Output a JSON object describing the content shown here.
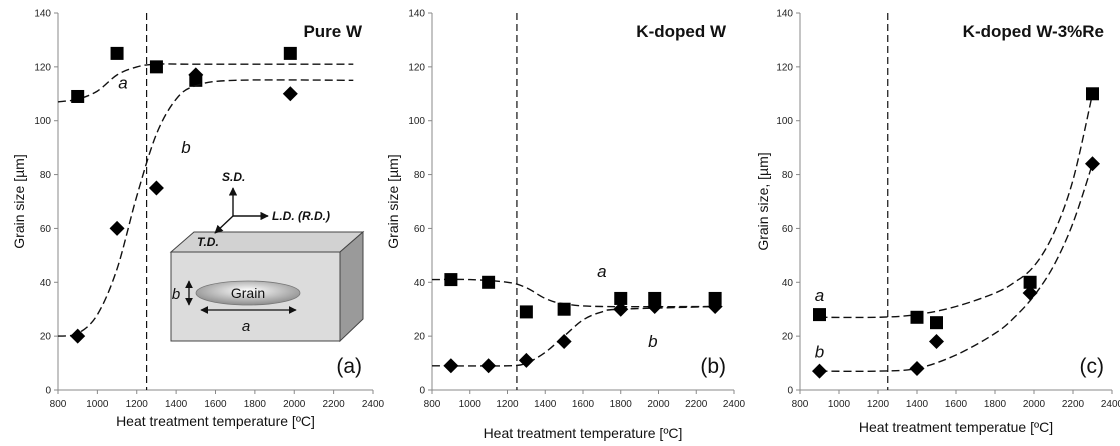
{
  "chart_data": [
    {
      "type": "scatter",
      "title": "Pure W",
      "panel_label": "(a)",
      "xlabel": "Heat treatment temperature [ºC]",
      "ylabel": "Grain size [µm]",
      "xlim": [
        800,
        2400
      ],
      "ylim": [
        0,
        140
      ],
      "x_ticks": [
        "800",
        "1000",
        "1200",
        "1400",
        "1600",
        "1800",
        "2000",
        "2200",
        "2400"
      ],
      "y_ticks": [
        "0",
        "20",
        "40",
        "60",
        "80",
        "100",
        "120",
        "140"
      ],
      "vline_x": 1250,
      "grid": false,
      "legend": "none",
      "series": [
        {
          "marker": "square",
          "curve_label": "a",
          "points": [
            [
              900,
              109
            ],
            [
              1100,
              125
            ],
            [
              1300,
              120
            ],
            [
              1500,
              115
            ],
            [
              1980,
              125
            ]
          ],
          "trend": [
            [
              800,
              107
            ],
            [
              900,
              108
            ],
            [
              1000,
              111
            ],
            [
              1100,
              117
            ],
            [
              1200,
              120
            ],
            [
              1300,
              121
            ],
            [
              1500,
              121
            ],
            [
              2000,
              121
            ],
            [
              2300,
              121
            ]
          ]
        },
        {
          "marker": "diamond",
          "curve_label": "b",
          "points": [
            [
              900,
              20
            ],
            [
              1100,
              60
            ],
            [
              1300,
              75
            ],
            [
              1500,
              117
            ],
            [
              1980,
              110
            ]
          ],
          "trend": [
            [
              800,
              20
            ],
            [
              900,
              21
            ],
            [
              1000,
              28
            ],
            [
              1100,
              45
            ],
            [
              1200,
              72
            ],
            [
              1300,
              95
            ],
            [
              1400,
              108
            ],
            [
              1500,
              113
            ],
            [
              1700,
              115
            ],
            [
              2300,
              115
            ]
          ]
        }
      ],
      "inset": {
        "axis_labels": [
          "S.D.",
          "L.D. (R.D.)",
          "T.D."
        ],
        "grain_label": "Grain",
        "dim_labels": [
          "a",
          "b"
        ]
      }
    },
    {
      "type": "scatter",
      "title": "K-doped W",
      "panel_label": "(b)",
      "xlabel": "Heat treatment temperature [ºC]",
      "ylabel": "Grain size [µm]",
      "xlim": [
        800,
        2400
      ],
      "ylim": [
        0,
        140
      ],
      "x_ticks": [
        "800",
        "1000",
        "1200",
        "1400",
        "1600",
        "1800",
        "2000",
        "2200",
        "2400"
      ],
      "y_ticks": [
        "0",
        "20",
        "40",
        "60",
        "80",
        "100",
        "120",
        "140"
      ],
      "vline_x": 1250,
      "grid": false,
      "legend": "none",
      "series": [
        {
          "marker": "square",
          "curve_label": "a",
          "points": [
            [
              900,
              41
            ],
            [
              1100,
              40
            ],
            [
              1300,
              29
            ],
            [
              1500,
              30
            ],
            [
              1800,
              34
            ],
            [
              1980,
              34
            ],
            [
              2300,
              34
            ]
          ],
          "trend": [
            [
              800,
              41
            ],
            [
              1000,
              41
            ],
            [
              1200,
              40
            ],
            [
              1300,
              38
            ],
            [
              1400,
              34
            ],
            [
              1500,
              32
            ],
            [
              1700,
              31
            ],
            [
              2300,
              31
            ]
          ]
        },
        {
          "marker": "diamond",
          "curve_label": "b",
          "points": [
            [
              900,
              9
            ],
            [
              1100,
              9
            ],
            [
              1300,
              11
            ],
            [
              1500,
              18
            ],
            [
              1800,
              30
            ],
            [
              1980,
              31
            ],
            [
              2300,
              31
            ]
          ],
          "trend": [
            [
              800,
              9
            ],
            [
              1200,
              9
            ],
            [
              1300,
              10
            ],
            [
              1400,
              14
            ],
            [
              1500,
              20
            ],
            [
              1600,
              26
            ],
            [
              1700,
              29
            ],
            [
              1800,
              30
            ],
            [
              2300,
              31
            ]
          ]
        }
      ]
    },
    {
      "type": "scatter",
      "title": "K-doped W-3%Re",
      "panel_label": "(c)",
      "xlabel": "Heat treatment temperatue [ºC]",
      "ylabel": "Grain size, [µm]",
      "xlim": [
        800,
        2400
      ],
      "ylim": [
        0,
        140
      ],
      "x_ticks": [
        "800",
        "1000",
        "1200",
        "1400",
        "1600",
        "1800",
        "2000",
        "2200",
        "2400"
      ],
      "y_ticks": [
        "0",
        "20",
        "40",
        "60",
        "80",
        "100",
        "120",
        "140"
      ],
      "vline_x": 1250,
      "grid": false,
      "legend": "none",
      "series": [
        {
          "marker": "square",
          "curve_label": "a",
          "points": [
            [
              900,
              28
            ],
            [
              1400,
              27
            ],
            [
              1500,
              25
            ],
            [
              1980,
              40
            ],
            [
              2300,
              110
            ]
          ],
          "trend": [
            [
              900,
              27
            ],
            [
              1200,
              27
            ],
            [
              1400,
              28
            ],
            [
              1600,
              31
            ],
            [
              1800,
              36
            ],
            [
              1900,
              40
            ],
            [
              2000,
              46
            ],
            [
              2100,
              58
            ],
            [
              2200,
              78
            ],
            [
              2300,
              110
            ]
          ]
        },
        {
          "marker": "diamond",
          "curve_label": "b",
          "points": [
            [
              900,
              7
            ],
            [
              1400,
              8
            ],
            [
              1500,
              18
            ],
            [
              1980,
              36
            ],
            [
              2300,
              84
            ]
          ],
          "trend": [
            [
              900,
              7
            ],
            [
              1200,
              7
            ],
            [
              1400,
              8
            ],
            [
              1600,
              13
            ],
            [
              1800,
              21
            ],
            [
              1900,
              27
            ],
            [
              2000,
              35
            ],
            [
              2100,
              46
            ],
            [
              2200,
              62
            ],
            [
              2300,
              84
            ]
          ]
        }
      ]
    }
  ]
}
